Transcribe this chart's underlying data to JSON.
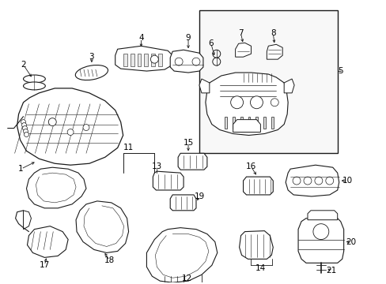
{
  "bg_color": "#ffffff",
  "line_color": "#1a1a1a",
  "label_color": "#000000",
  "label_fontsize": 7.5,
  "fig_width": 4.89,
  "fig_height": 3.6,
  "dpi": 100
}
